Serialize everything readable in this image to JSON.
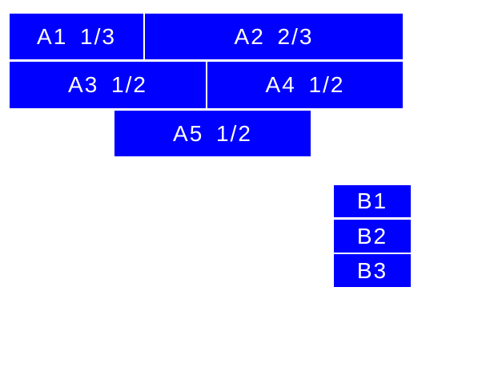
{
  "colors": {
    "box_background": "#0000ff",
    "box_text": "#ffffff",
    "page_background": "#ffffff"
  },
  "group_a": {
    "items": [
      {
        "id": "A1",
        "label": "A1 1/3"
      },
      {
        "id": "A2",
        "label": "A2 2/3"
      },
      {
        "id": "A3",
        "label": "A3 1/2"
      },
      {
        "id": "A4",
        "label": "A4 1/2"
      },
      {
        "id": "A5",
        "label": "A5 1/2"
      }
    ]
  },
  "group_b": {
    "items": [
      {
        "id": "B1",
        "label": "B1"
      },
      {
        "id": "B2",
        "label": "B2"
      },
      {
        "id": "B3",
        "label": "B3"
      }
    ]
  }
}
